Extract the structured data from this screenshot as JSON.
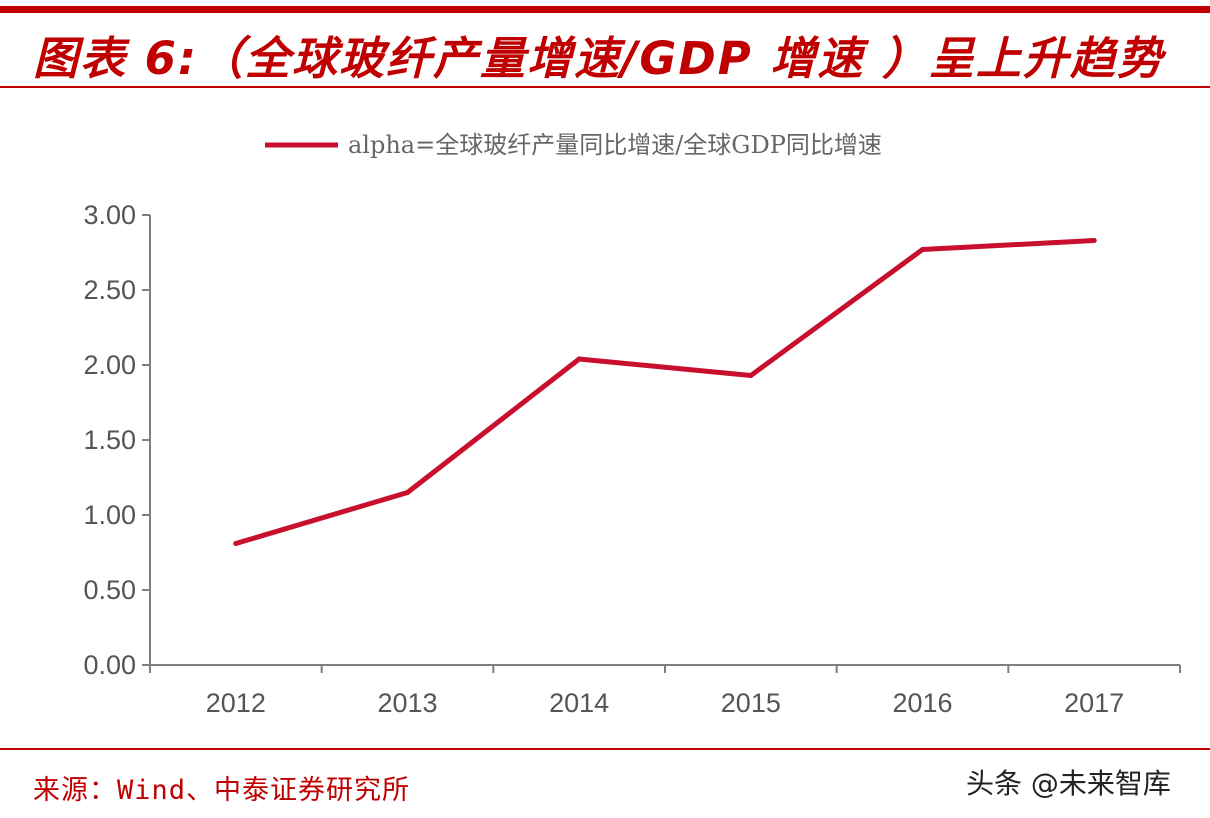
{
  "header": {
    "title": "图表 6:（全球玻纤产量增速/GDP 增速 ）呈上升趋势"
  },
  "footer": {
    "source": "来源：Wind、中泰证券研究所",
    "watermark": "头条 @未来智库"
  },
  "colors": {
    "accent": "#c00000",
    "series": "#c8102e",
    "axis": "#7f7f7f",
    "tick_text": "#555555"
  },
  "chart_data": {
    "type": "line",
    "categories": [
      "2012",
      "2013",
      "2014",
      "2015",
      "2016",
      "2017"
    ],
    "series": [
      {
        "name": "alpha=全球玻纤产量同比增速/全球GDP同比增速",
        "values": [
          0.81,
          1.15,
          2.04,
          1.93,
          2.77,
          2.83
        ]
      }
    ],
    "ylim": [
      0,
      3
    ],
    "yticks": [
      "0.00",
      "0.50",
      "1.00",
      "1.50",
      "2.00",
      "2.50",
      "3.00"
    ],
    "grid": false,
    "legend": "top-center",
    "title": "",
    "xlabel": "",
    "ylabel": ""
  }
}
